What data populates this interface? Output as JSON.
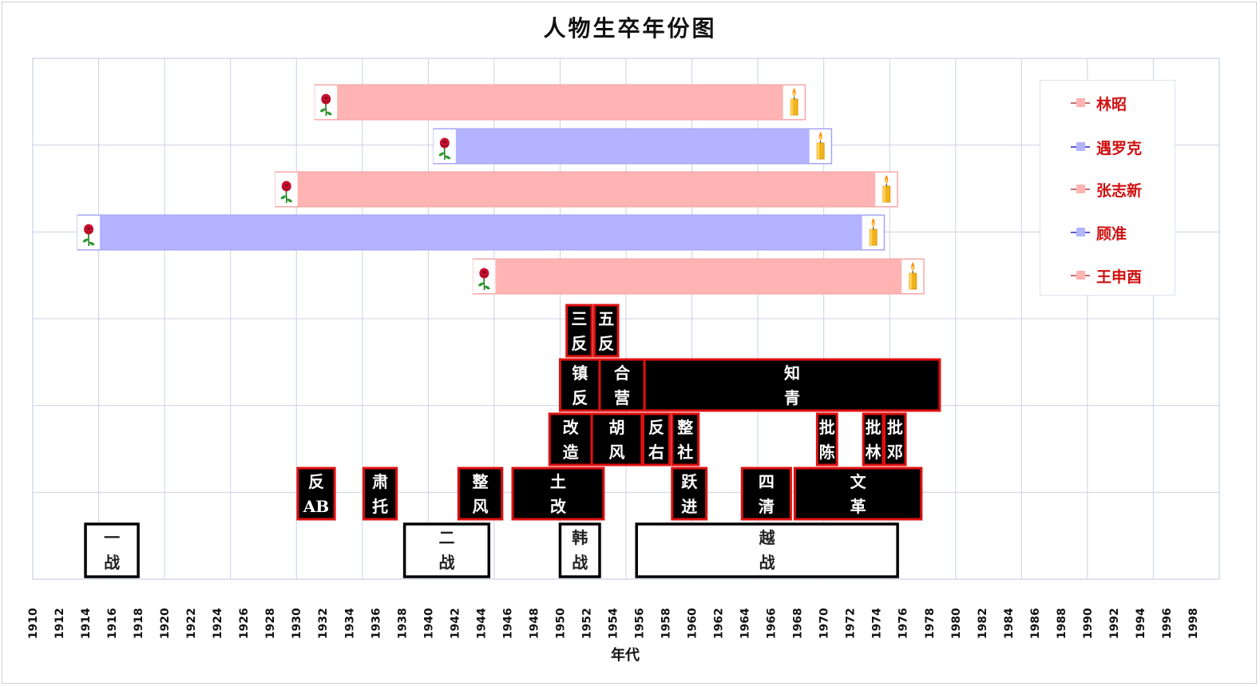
{
  "chart_data": {
    "type": "timeline",
    "title": "人物生卒年份图",
    "xlabel": "年代",
    "xlim": [
      1910,
      2000
    ],
    "x_ticks": [
      1910,
      1912,
      1914,
      1916,
      1918,
      1920,
      1922,
      1924,
      1926,
      1928,
      1930,
      1932,
      1934,
      1936,
      1938,
      1940,
      1942,
      1944,
      1946,
      1948,
      1950,
      1952,
      1954,
      1956,
      1958,
      1960,
      1962,
      1964,
      1966,
      1968,
      1970,
      1972,
      1974,
      1976,
      1978,
      1980,
      1982,
      1984,
      1986,
      1988,
      1990,
      1992,
      1994,
      1996,
      1998
    ],
    "grid": true,
    "legend_position": "right",
    "series": [
      {
        "name": "林昭",
        "birth": 1932,
        "death": 1968,
        "color": "#ffb3b3"
      },
      {
        "name": "遇罗克",
        "birth": 1941,
        "death": 1970,
        "color": "#b3b3ff"
      },
      {
        "name": "张志新",
        "birth": 1929,
        "death": 1975,
        "color": "#ffb3b3"
      },
      {
        "name": "顾准",
        "birth": 1914,
        "death": 1974,
        "color": "#b3b3ff"
      },
      {
        "name": "王申酉",
        "birth": 1944,
        "death": 1977,
        "color": "#ffb3b3"
      }
    ],
    "events": [
      {
        "line1": "三",
        "line2": "反",
        "start": 1950.5,
        "end": 1952.4,
        "row": 5,
        "style": "campaign"
      },
      {
        "line1": "五",
        "line2": "反",
        "start": 1952.6,
        "end": 1954.4,
        "row": 5,
        "style": "campaign"
      },
      {
        "line1": "镇",
        "line2": "反",
        "start": 1950.0,
        "end": 1953.0,
        "row": 4,
        "style": "campaign"
      },
      {
        "line1": "合",
        "line2": "营",
        "start": 1953.0,
        "end": 1956.4,
        "row": 4,
        "style": "campaign"
      },
      {
        "line1": "知",
        "line2": "青",
        "start": 1956.4,
        "end": 1978.8,
        "row": 4,
        "style": "campaign"
      },
      {
        "line1": "改",
        "line2": "造",
        "start": 1949.2,
        "end": 1952.4,
        "row": 3,
        "style": "campaign"
      },
      {
        "line1": "胡",
        "line2": "风",
        "start": 1952.4,
        "end": 1956.2,
        "row": 3,
        "style": "campaign"
      },
      {
        "line1": "反",
        "line2": "右",
        "start": 1956.3,
        "end": 1958.3,
        "row": 3,
        "style": "campaign"
      },
      {
        "line1": "整",
        "line2": "社",
        "start": 1958.5,
        "end": 1960.5,
        "row": 3,
        "style": "campaign"
      },
      {
        "line1": "批",
        "line2": "陈",
        "start": 1969.5,
        "end": 1971.0,
        "row": 3,
        "style": "campaign"
      },
      {
        "line1": "批",
        "line2": "林",
        "start": 1973.0,
        "end": 1974.5,
        "row": 3,
        "style": "campaign"
      },
      {
        "line1": "批",
        "line2": "邓",
        "start": 1974.6,
        "end": 1976.2,
        "row": 3,
        "style": "campaign"
      },
      {
        "line1": "反",
        "line2": "AB",
        "start": 1930.1,
        "end": 1932.9,
        "row": 2,
        "style": "campaign"
      },
      {
        "line1": "肃",
        "line2": "托",
        "start": 1935.1,
        "end": 1937.6,
        "row": 2,
        "style": "campaign"
      },
      {
        "line1": "整",
        "line2": "风",
        "start": 1942.3,
        "end": 1945.6,
        "row": 2,
        "style": "campaign"
      },
      {
        "line1": "土",
        "line2": "改",
        "start": 1946.4,
        "end": 1953.3,
        "row": 2,
        "style": "campaign"
      },
      {
        "line1": "跃",
        "line2": "进",
        "start": 1958.5,
        "end": 1961.1,
        "row": 2,
        "style": "campaign"
      },
      {
        "line1": "四",
        "line2": "清",
        "start": 1963.8,
        "end": 1967.5,
        "row": 2,
        "style": "campaign"
      },
      {
        "line1": "文",
        "line2": "革",
        "start": 1967.8,
        "end": 1977.4,
        "row": 2,
        "style": "campaign"
      },
      {
        "line1": "一",
        "line2": "战",
        "start": 1914.0,
        "end": 1918.0,
        "row": 1,
        "style": "war"
      },
      {
        "line1": "二",
        "line2": "战",
        "start": 1938.2,
        "end": 1944.6,
        "row": 1,
        "style": "war"
      },
      {
        "line1": "韩",
        "line2": "战",
        "start": 1950.0,
        "end": 1953.0,
        "row": 1,
        "style": "war"
      },
      {
        "line1": "越",
        "line2": "战",
        "start": 1955.8,
        "end": 1975.6,
        "row": 1,
        "style": "war"
      }
    ]
  },
  "colors": {
    "grid": "#c9d3e3",
    "campaign_fill": "#000000",
    "campaign_border": "#e01010",
    "war_border": "#000000",
    "legend_text": "#d01010"
  }
}
